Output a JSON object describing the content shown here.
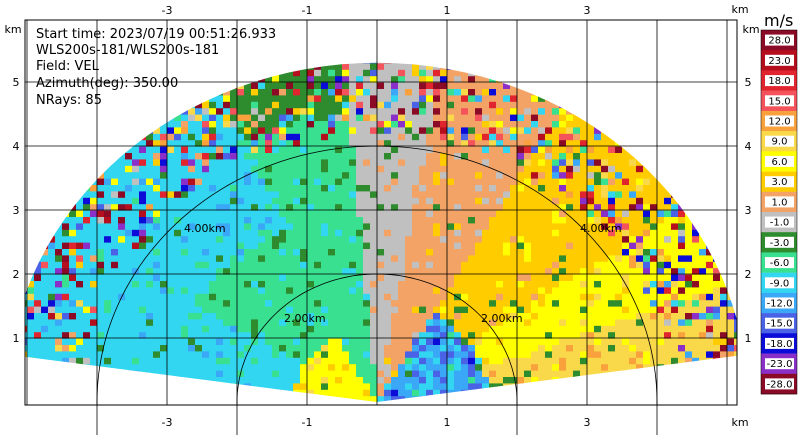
{
  "info": {
    "start_time": "Start time: 2023/07/19 00:51:26.933",
    "instrument": "WLS200s-181/WLS200s-181",
    "field": "Field: VEL",
    "azimuth": "Azimuth(deg): 350.00",
    "nrays": "NRays: 85"
  },
  "chart_data": {
    "type": "heatmap",
    "title": "",
    "xlabel": "km",
    "ylabel": "km",
    "x_ticks": [
      "-3",
      "-1",
      "1",
      "3"
    ],
    "y_ticks": [
      "1",
      "2",
      "3",
      "4",
      "5"
    ],
    "xlim": [
      -5,
      5
    ],
    "ylim": [
      0,
      6
    ],
    "ring_labels": [
      "2.00km",
      "2.00km",
      "4.00km",
      "4.00km"
    ],
    "colorbar": {
      "unit": "m/s",
      "levels": [
        "28.0",
        "23.0",
        "18.0",
        "15.0",
        "12.0",
        "9.0",
        "6.0",
        "3.0",
        "1.0",
        "-1.0",
        "-3.0",
        "-6.0",
        "-9.0",
        "-12.0",
        "-15.0",
        "-18.0",
        "-23.0",
        "-28.0"
      ],
      "colors": [
        "#8b0a25",
        "#b50f1e",
        "#e0252f",
        "#f4535b",
        "#f9a13d",
        "#f9d94a",
        "#ffff00",
        "#ffcc00",
        "#f2a365",
        "#c0c0c0",
        "#2e8b2e",
        "#38e090",
        "#33d6f0",
        "#3aa8f7",
        "#4a63e6",
        "#0c0cd8",
        "#8b2fc9",
        "#8b0a25"
      ]
    }
  }
}
